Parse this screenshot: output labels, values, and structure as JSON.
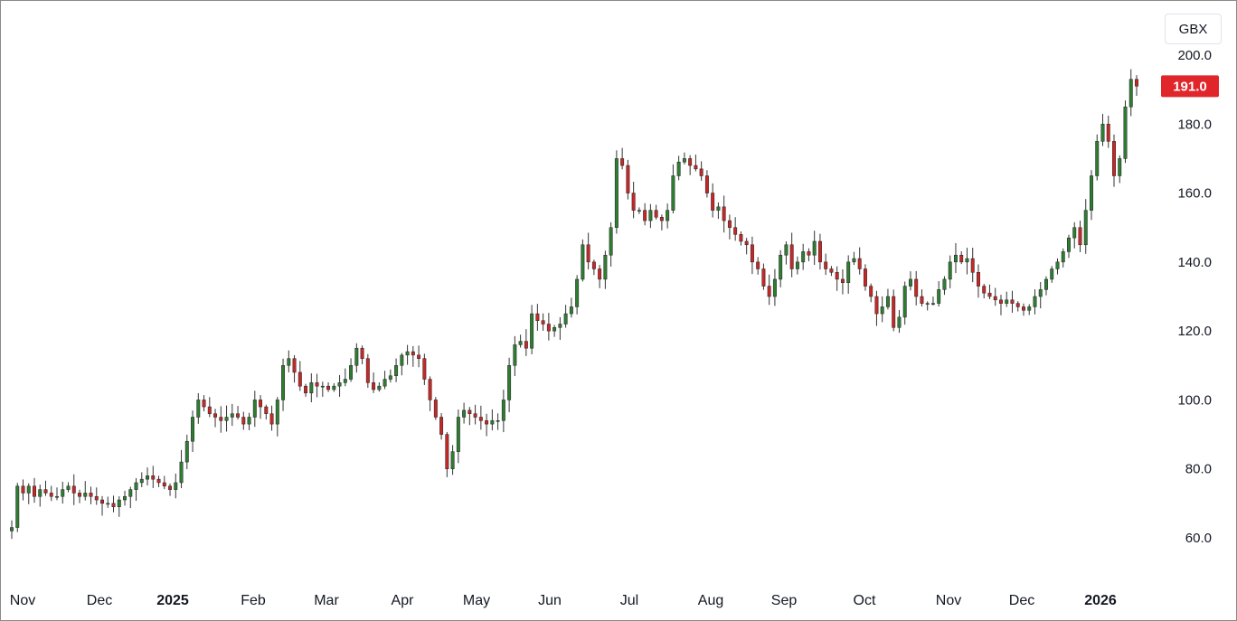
{
  "currency": "GBX",
  "colors": {
    "up": "#2e7d32",
    "down": "#c62828",
    "wick": "#333333",
    "price_tag": "#e0262b",
    "text": "#131722"
  },
  "chart_data": {
    "type": "candlestick",
    "title": "",
    "currency": "GBX",
    "y_ticks": [
      "200.0",
      "180.0",
      "160.0",
      "140.0",
      "120.0",
      "100.0",
      "80.0",
      "60.0"
    ],
    "ylim": [
      50,
      200
    ],
    "x_ticks": [
      "Nov",
      "Dec",
      "2025",
      "Feb",
      "Mar",
      "Apr",
      "May",
      "Jun",
      "Jul",
      "Aug",
      "Sep",
      "Oct",
      "Nov",
      "Dec",
      "2026"
    ],
    "x_tick_bold": [
      "2025",
      "2026"
    ],
    "last_price": "191.0",
    "grid": false,
    "series": [
      {
        "date": "2024-11",
        "values": [
          63,
          75,
          73,
          75,
          72,
          74,
          73,
          72,
          72,
          74,
          75,
          73
        ]
      },
      {
        "date": "2024-12",
        "values": [
          72,
          73,
          72,
          71,
          70,
          70,
          69,
          71,
          72,
          74,
          76,
          77
        ]
      },
      {
        "date": "2025-01",
        "values": [
          78,
          77,
          76,
          75,
          74,
          76,
          82,
          88,
          95,
          100,
          98,
          96,
          95,
          94,
          95,
          96,
          95,
          93
        ]
      },
      {
        "date": "2025-02",
        "values": [
          95,
          100,
          98,
          96,
          93,
          100,
          110,
          112,
          108,
          104,
          102,
          105,
          104,
          104,
          103,
          104,
          105,
          106
        ]
      },
      {
        "date": "2025-03",
        "values": [
          110,
          115,
          112,
          105,
          103,
          104,
          106,
          107,
          110,
          113,
          114,
          113,
          112,
          106,
          100,
          95,
          90,
          80,
          85,
          95,
          97,
          96,
          95,
          94,
          93,
          94,
          94
        ]
      },
      {
        "date": "2025-05",
        "values": [
          100,
          110,
          116,
          117,
          115,
          125,
          123,
          122,
          120,
          121,
          122,
          125,
          127,
          135,
          145,
          140,
          138,
          135,
          142,
          150,
          170,
          168,
          160,
          155,
          155,
          152,
          155
        ]
      },
      {
        "date": "2025-07",
        "values": [
          153,
          152,
          155,
          165,
          169,
          170,
          168,
          167,
          165,
          160,
          155,
          156,
          152,
          150,
          148,
          146,
          145,
          140,
          138,
          133,
          130,
          135,
          142,
          145,
          138,
          140,
          143,
          142
        ]
      },
      {
        "date": "2025-09",
        "values": [
          146,
          140,
          138,
          137,
          135,
          134,
          140,
          141,
          138,
          133,
          130,
          125,
          127,
          130,
          121,
          124,
          133,
          135,
          130,
          128,
          128,
          128,
          132,
          135,
          140,
          142,
          140,
          141
        ]
      },
      {
        "date": "2025-11",
        "values": [
          137,
          133,
          131,
          130,
          129,
          128,
          129,
          128,
          127,
          126,
          127,
          130,
          132,
          135,
          138,
          140,
          143,
          147,
          150,
          145,
          155,
          165,
          175,
          180,
          175,
          165,
          170,
          185,
          193,
          191
        ]
      }
    ]
  }
}
